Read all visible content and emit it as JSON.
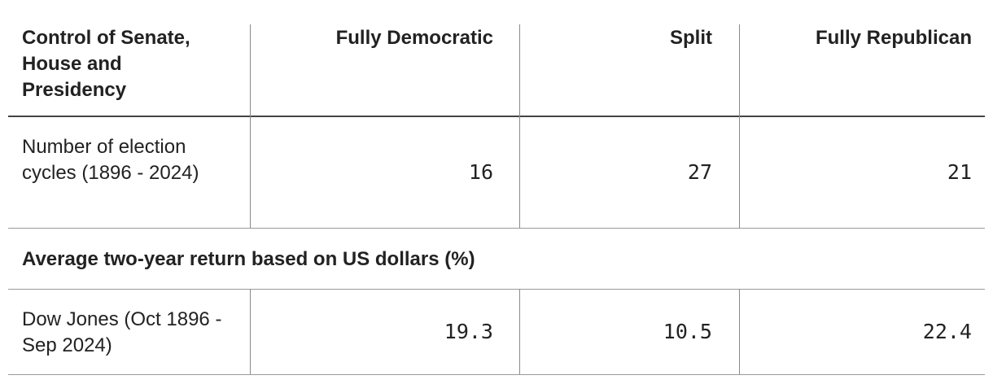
{
  "table": {
    "header": [
      "Control of Senate, House and Presidency",
      "Fully Democratic",
      "Split",
      "Fully Republican"
    ],
    "rows": [
      {
        "label": "Number of election cycles (1896 - 2024)",
        "values": [
          16,
          27,
          21
        ]
      },
      {
        "section": "Average two-year return based on US dollars (%)"
      },
      {
        "label": "Dow Jones (Oct 1896 - Sep 2024)",
        "values": [
          19.3,
          10.5,
          22.4
        ]
      }
    ]
  }
}
